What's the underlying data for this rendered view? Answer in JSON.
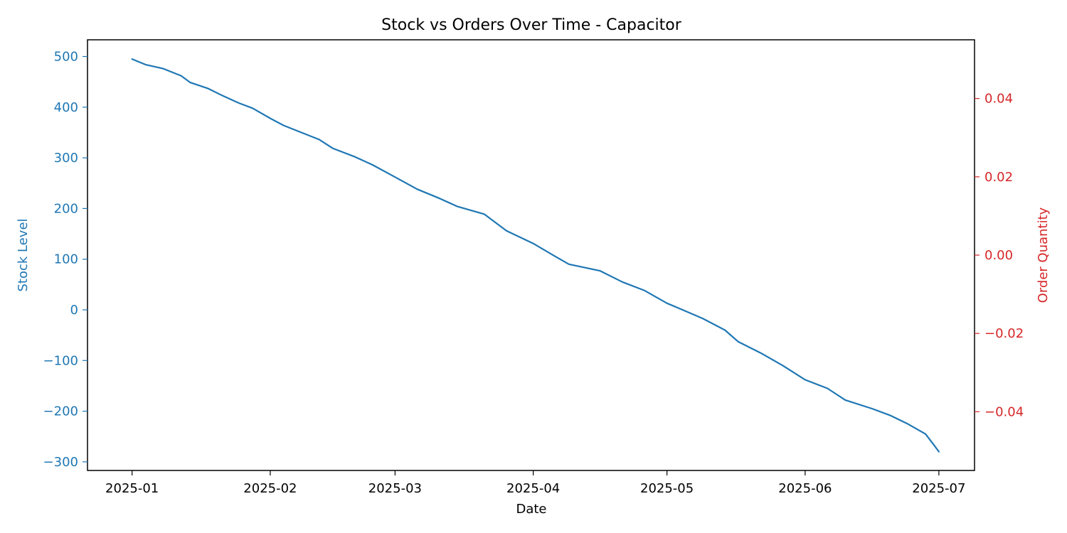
{
  "chart_data": {
    "type": "line",
    "title": "Stock vs Orders Over Time - Capacitor",
    "xlabel": "Date",
    "ylabel": "Stock Level",
    "y2label": "Order Quantity",
    "grid": false,
    "xlim": [
      "2024-12-22",
      "2025-07-09"
    ],
    "ylim": [
      -317,
      533
    ],
    "y2lim": [
      -0.055,
      0.055
    ],
    "xticks": [
      {
        "date": "2025-01-01",
        "label": "2025-01"
      },
      {
        "date": "2025-02-01",
        "label": "2025-02"
      },
      {
        "date": "2025-03-01",
        "label": "2025-03"
      },
      {
        "date": "2025-04-01",
        "label": "2025-04"
      },
      {
        "date": "2025-05-01",
        "label": "2025-05"
      },
      {
        "date": "2025-06-01",
        "label": "2025-06"
      },
      {
        "date": "2025-07-01",
        "label": "2025-07"
      }
    ],
    "yticks": [
      {
        "value": 500,
        "label": "500"
      },
      {
        "value": 400,
        "label": "400"
      },
      {
        "value": 300,
        "label": "300"
      },
      {
        "value": 200,
        "label": "200"
      },
      {
        "value": 100,
        "label": "100"
      },
      {
        "value": 0,
        "label": "0"
      },
      {
        "value": -100,
        "label": "−100"
      },
      {
        "value": -200,
        "label": "−200"
      },
      {
        "value": -300,
        "label": "−300"
      }
    ],
    "y2ticks": [
      {
        "value": 0.04,
        "label": "0.04"
      },
      {
        "value": 0.02,
        "label": "0.02"
      },
      {
        "value": 0.0,
        "label": "0.00"
      },
      {
        "value": -0.02,
        "label": "−0.02"
      },
      {
        "value": -0.04,
        "label": "−0.04"
      }
    ],
    "series": [
      {
        "axis": "left",
        "color": "#1f77b4",
        "points": [
          {
            "x": "2025-01-01",
            "y": 495
          },
          {
            "x": "2025-01-04",
            "y": 484
          },
          {
            "x": "2025-01-08",
            "y": 476
          },
          {
            "x": "2025-01-12",
            "y": 462
          },
          {
            "x": "2025-01-14",
            "y": 449
          },
          {
            "x": "2025-01-18",
            "y": 437
          },
          {
            "x": "2025-01-21",
            "y": 424
          },
          {
            "x": "2025-01-25",
            "y": 408
          },
          {
            "x": "2025-01-28",
            "y": 398
          },
          {
            "x": "2025-02-01",
            "y": 378
          },
          {
            "x": "2025-02-04",
            "y": 364
          },
          {
            "x": "2025-02-08",
            "y": 350
          },
          {
            "x": "2025-02-12",
            "y": 336
          },
          {
            "x": "2025-02-15",
            "y": 319
          },
          {
            "x": "2025-02-20",
            "y": 302
          },
          {
            "x": "2025-02-24",
            "y": 286
          },
          {
            "x": "2025-03-01",
            "y": 262
          },
          {
            "x": "2025-03-06",
            "y": 238
          },
          {
            "x": "2025-03-11",
            "y": 220
          },
          {
            "x": "2025-03-15",
            "y": 204
          },
          {
            "x": "2025-03-21",
            "y": 189
          },
          {
            "x": "2025-03-26",
            "y": 156
          },
          {
            "x": "2025-04-01",
            "y": 131
          },
          {
            "x": "2025-04-06",
            "y": 105
          },
          {
            "x": "2025-04-09",
            "y": 90
          },
          {
            "x": "2025-04-16",
            "y": 77
          },
          {
            "x": "2025-04-21",
            "y": 55
          },
          {
            "x": "2025-04-26",
            "y": 38
          },
          {
            "x": "2025-05-01",
            "y": 13
          },
          {
            "x": "2025-05-04",
            "y": 2
          },
          {
            "x": "2025-05-09",
            "y": -17
          },
          {
            "x": "2025-05-14",
            "y": -40
          },
          {
            "x": "2025-05-17",
            "y": -63
          },
          {
            "x": "2025-05-22",
            "y": -85
          },
          {
            "x": "2025-05-27",
            "y": -110
          },
          {
            "x": "2025-06-01",
            "y": -138
          },
          {
            "x": "2025-06-06",
            "y": -155
          },
          {
            "x": "2025-06-10",
            "y": -178
          },
          {
            "x": "2025-06-16",
            "y": -195
          },
          {
            "x": "2025-06-20",
            "y": -208
          },
          {
            "x": "2025-06-24",
            "y": -225
          },
          {
            "x": "2025-06-28",
            "y": -245
          },
          {
            "x": "2025-06-30",
            "y": -268
          },
          {
            "x": "2025-07-01",
            "y": -280
          }
        ]
      }
    ]
  }
}
